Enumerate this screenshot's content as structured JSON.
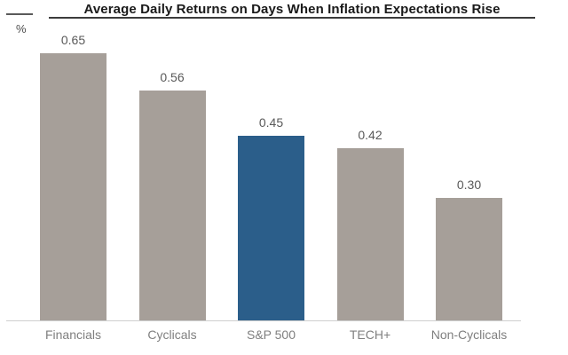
{
  "chart_data": {
    "type": "bar",
    "title": "Average Daily Returns on Days When Inflation Expectations Rise",
    "ylabel": "%",
    "xlabel": "",
    "categories": [
      "Financials",
      "Cyclicals",
      "S&P 500",
      "TECH+",
      "Non-Cyclicals"
    ],
    "values": [
      0.65,
      0.56,
      0.45,
      0.42,
      0.3
    ],
    "value_labels": [
      "0.65",
      "0.56",
      "0.45",
      "0.42",
      "0.30"
    ],
    "ylim": [
      0,
      0.78
    ],
    "grid": false,
    "legend": false,
    "y_axis_ticks_visible": false,
    "highlight_category": "S&P 500",
    "highlight_index": 2,
    "colors": {
      "default_bar": "#a69f99",
      "highlight_bar": "#2b5e8a",
      "title_text": "#1a1a1a",
      "value_label": "#595959",
      "category_label": "#7f7f7f",
      "axis_line": "#cfcfcf"
    }
  }
}
